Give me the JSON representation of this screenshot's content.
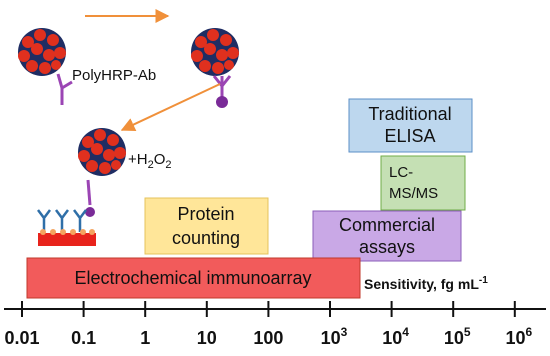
{
  "labels": {
    "polyhrp": "PolyHRP-Ab",
    "h2o2": {
      "prefix": "+H",
      "sub1": "2",
      "mid": "O",
      "sub2": "2"
    }
  },
  "boxes": [
    {
      "lines": [
        "Traditional",
        "ELISA"
      ]
    },
    {
      "lines": [
        "LC-",
        "MS/MS"
      ]
    },
    {
      "lines": [
        "Commercial",
        "assays"
      ]
    },
    {
      "lines": [
        "Protein",
        "counting"
      ]
    },
    {
      "lines": [
        "Electrochemical immunoarray"
      ]
    }
  ],
  "axis": {
    "title": "Sensitivity, fg mL",
    "title_exp": "-1",
    "ticks": [
      "0.01",
      "0.1",
      "1",
      "10",
      "100",
      {
        "base": "10",
        "exp": "3"
      },
      {
        "base": "10",
        "exp": "4"
      },
      {
        "base": "10",
        "exp": "5"
      },
      {
        "base": "10",
        "exp": "6"
      }
    ]
  }
}
